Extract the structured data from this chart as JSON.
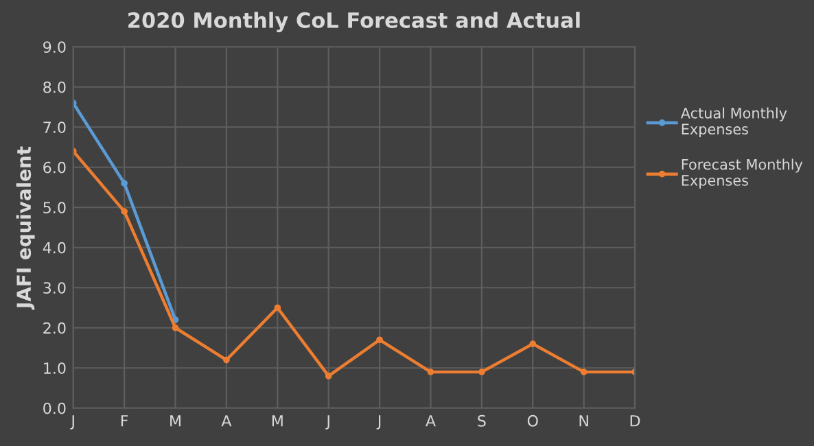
{
  "chart_data": {
    "type": "line",
    "title": "2020 Monthly CoL Forecast and Actual",
    "ylabel": "JAFI equivalent",
    "categories": [
      "J",
      "F",
      "M",
      "A",
      "M",
      "J",
      "J",
      "A",
      "S",
      "O",
      "N",
      "D"
    ],
    "series": [
      {
        "name": "Actual Monthly Expenses",
        "color": "#5b9bd5",
        "values": [
          7.6,
          5.6,
          2.2,
          null,
          null,
          null,
          null,
          null,
          null,
          null,
          null,
          null
        ]
      },
      {
        "name": "Forecast Monthly Expenses",
        "color": "#ed7d31",
        "values": [
          6.4,
          4.9,
          2.0,
          1.2,
          2.5,
          0.8,
          1.7,
          0.9,
          0.9,
          1.6,
          0.9,
          0.9
        ]
      }
    ],
    "ylim": [
      0,
      9
    ],
    "yticks": [
      {
        "value": 0,
        "label": "0.0"
      },
      {
        "value": 1,
        "label": "1.0"
      },
      {
        "value": 2,
        "label": "2.0"
      },
      {
        "value": 3,
        "label": "3.0"
      },
      {
        "value": 4,
        "label": "4.0"
      },
      {
        "value": 5,
        "label": "5.0"
      },
      {
        "value": 6,
        "label": "6.0"
      },
      {
        "value": 7,
        "label": "7.0"
      },
      {
        "value": 8,
        "label": "8.0"
      },
      {
        "value": 9,
        "label": "9.0"
      }
    ],
    "grid": true,
    "legend": "right",
    "marker": "circle",
    "line_style": "solid"
  }
}
